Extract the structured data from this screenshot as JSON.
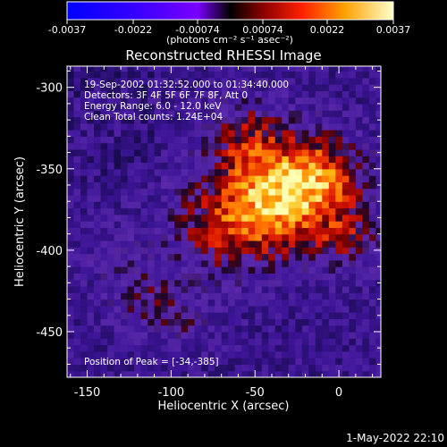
{
  "colorbar": {
    "tick_labels": [
      "-0.0037",
      "-0.0022",
      "-0.00074",
      "0.00074",
      "0.0022",
      "0.0037"
    ],
    "ticks": [
      -0.0037,
      -0.0022,
      -0.00074,
      0.00074,
      0.0022,
      0.0037
    ],
    "range": [
      -0.0037,
      0.0037
    ],
    "unit_label": "(photons cm⁻² s⁻¹ asec⁻²)"
  },
  "chart_data": {
    "type": "heatmap",
    "title": "Reconstructed RHESSI Image",
    "xlabel": "Heliocentric X (arcsec)",
    "ylabel": "Heliocentric Y (arcsec)",
    "xlim": [
      -162,
      25
    ],
    "ylim": [
      -478,
      -287
    ],
    "x_ticks": [
      -150,
      -100,
      -50,
      0
    ],
    "y_ticks": [
      -300,
      -350,
      -400,
      -450
    ],
    "annotations": [
      "19-Sep-2002 01:32:52.000 to 01:34:40.000",
      "Detectors: 3F 4F 5F 6F 7F 8F, Att 0",
      "Energy Range: 6.0 - 12.0 keV",
      "Clean     Total counts: 1.24E+04"
    ],
    "peak_label": "Position of Peak = [-34,-385]",
    "peak": [
      -34,
      -385
    ],
    "grid": false
  },
  "footer": {
    "timestamp": "1-May-2022 22:10"
  }
}
